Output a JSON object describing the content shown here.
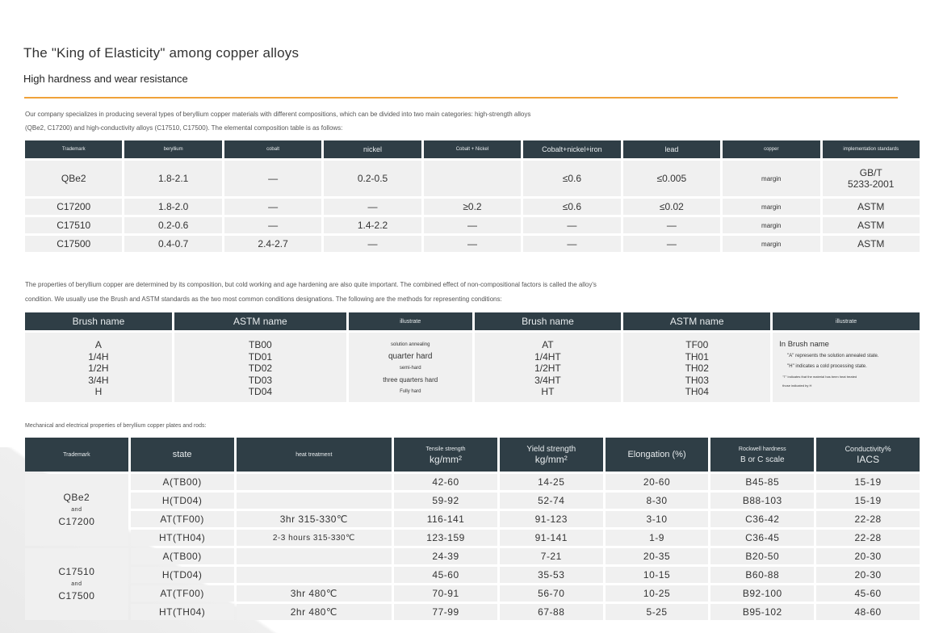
{
  "header": {
    "title": "The \"King of Elasticity\" among copper alloys",
    "subtitle": "High hardness and wear resistance"
  },
  "intro": {
    "line1": "Our company specializes in producing several types of beryllium copper materials with different compositions, which can be divided into two main categories: high-strength alloys",
    "line2": "(QBe2, C17200) and high-conductivity alloys (C17510, C17500). The elemental composition table is as follows:"
  },
  "composition": {
    "headers": [
      "Trademark",
      "beryllium",
      "cobalt",
      "nickel",
      "Cobalt + Nickel",
      "Cobalt+nickel+iron",
      "lead",
      "copper",
      "implementation standards"
    ],
    "rows": [
      [
        "QBe2",
        "1.8-2.1",
        "—",
        "0.2-0.5",
        "",
        "≤0.6",
        "≤0.005",
        "margin",
        "GB/T\n5233-2001"
      ],
      [
        "C17200",
        "1.8-2.0",
        "—",
        "—",
        "≥0.2",
        "≤0.6",
        "≤0.02",
        "margin",
        "ASTM"
      ],
      [
        "C17510",
        "0.2-0.6",
        "—",
        "1.4-2.2",
        "—",
        "—",
        "—",
        "margin",
        "ASTM"
      ],
      [
        "C17500",
        "0.4-0.7",
        "2.4-2.7",
        "—",
        "—",
        "—",
        "—",
        "margin",
        "ASTM"
      ]
    ]
  },
  "conditions_intro": {
    "line1": "The properties of beryllium copper are determined by its composition, but cold working and age hardening are also quite important. The combined effect of non-compositional factors is called the alloy's",
    "line2": "condition. We usually use the Brush and ASTM standards as the two most common conditions designations. The following are the methods for representing conditions:"
  },
  "conditions": {
    "headers": [
      "Brush name",
      "ASTM name",
      "illustrate",
      "Brush name",
      "ASTM name",
      "illustrate"
    ],
    "brush1": [
      "A",
      "1/4H",
      "1/2H",
      "3/4H",
      "H"
    ],
    "astm1": [
      "TB00",
      "TD01",
      "TD02",
      "TD03",
      "TD04"
    ],
    "illustrate1": [
      "solution annealing",
      "quarter hard",
      "semi-hard",
      "three quarters hard",
      "Fully hard"
    ],
    "brush2": [
      "AT",
      "1/4HT",
      "1/2HT",
      "3/4HT",
      "HT"
    ],
    "astm2": [
      "TF00",
      "TH01",
      "TH02",
      "TH03",
      "TH04"
    ],
    "illustrate2": {
      "heading": "In Brush name",
      "notes": [
        "\"A\" represents the solution annealed state.",
        "\"H\" indicates a cold processing state.",
        "\"T\" indicates that the material has been heat treated",
        "those indicated by H"
      ]
    }
  },
  "mech_intro": "Mechanical and electrical properties of beryllium copper plates and rods:",
  "mechanical": {
    "headers": {
      "trademark": "Trademark",
      "state": "state",
      "heat": "heat treatment",
      "tensile": "Tensile strength",
      "tensile_unit": "kg/mm²",
      "yield": "Yield strength",
      "yield_unit": "kg/mm²",
      "elongation": "Elongation (%)",
      "rockwell": "Rockwell hardness",
      "rockwell_unit": "B or C scale",
      "conductivity": "Conductivity%",
      "conductivity_unit": "IACS"
    },
    "groups": [
      {
        "name1": "QBe2",
        "and": "and",
        "name2": "C17200",
        "rows": [
          [
            "A(TB00)",
            "",
            "42-60",
            "14-25",
            "20-60",
            "B45-85",
            "15-19"
          ],
          [
            "H(TD04)",
            "",
            "59-92",
            "52-74",
            "8-30",
            "B88-103",
            "15-19"
          ],
          [
            "AT(TF00)",
            "3hr  315-330℃",
            "116-141",
            "91-123",
            "3-10",
            "C36-42",
            "22-28"
          ],
          [
            "HT(TH04)",
            "2-3 hours 315-330℃",
            "123-159",
            "91-141",
            "1-9",
            "C36-45",
            "22-28"
          ]
        ]
      },
      {
        "name1": "C17510",
        "and": "and",
        "name2": "C17500",
        "rows": [
          [
            "A(TB00)",
            "",
            "24-39",
            "7-21",
            "20-35",
            "B20-50",
            "20-30"
          ],
          [
            "H(TD04)",
            "",
            "45-60",
            "35-53",
            "10-15",
            "B60-88",
            "20-30"
          ],
          [
            "AT(TF00)",
            "3hr  480℃",
            "70-91",
            "56-70",
            "10-25",
            "B92-100",
            "45-60"
          ],
          [
            "HT(TH04)",
            "2hr  480℃",
            "77-99",
            "67-88",
            "5-25",
            "B95-102",
            "48-60"
          ]
        ]
      }
    ]
  }
}
